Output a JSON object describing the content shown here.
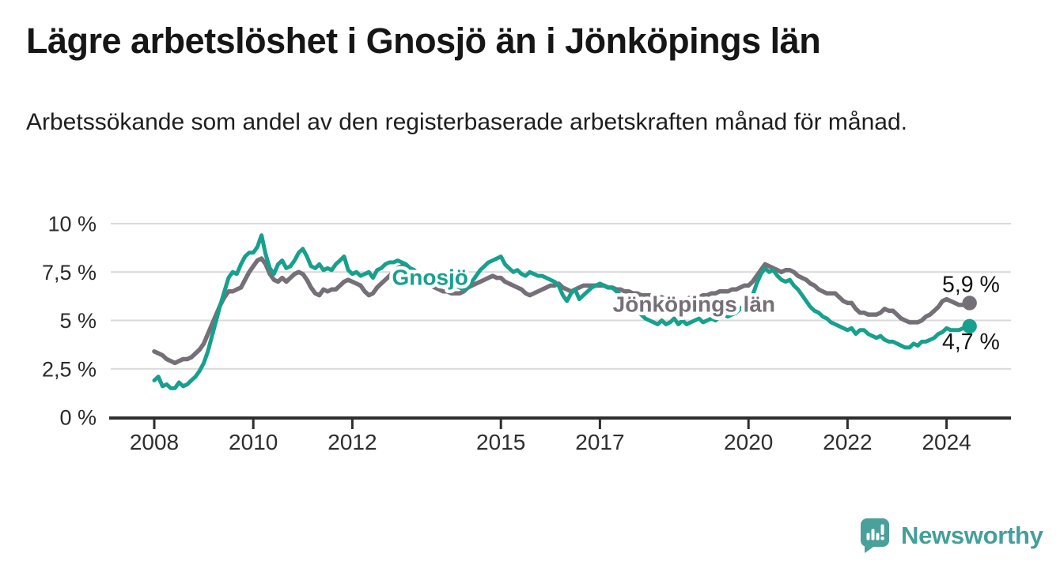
{
  "header": {
    "title": "Lägre arbetslöshet i Gnosjö än i Jönköpings län",
    "subtitle": "Arbetssökande som andel av den registerbaserade arbetskraften månad för månad."
  },
  "footer": {
    "brand": "Newsworthy"
  },
  "chart_data": {
    "type": "line",
    "title": "Lägre arbetslöshet i Gnosjö än i Jönköpings län",
    "subtitle": "Arbetssökande som andel av den registerbaserade arbetskraften månad för månad.",
    "unit": "%",
    "frequency": "monthly",
    "x_start": "2008-01",
    "x_end": "2024-06",
    "ylim": [
      0,
      10
    ],
    "grid": "horizontal",
    "yticks": [
      {
        "value": 10,
        "label": "10 %"
      },
      {
        "value": 7.5,
        "label": "7,5 %"
      },
      {
        "value": 5,
        "label": "5 %"
      },
      {
        "value": 2.5,
        "label": "2,5 %"
      },
      {
        "value": 0,
        "label": "0 %"
      }
    ],
    "xticks": [
      {
        "year": 2008,
        "label": "2008"
      },
      {
        "year": 2010,
        "label": "2010"
      },
      {
        "year": 2012,
        "label": "2012"
      },
      {
        "year": 2015,
        "label": "2015"
      },
      {
        "year": 2017,
        "label": "2017"
      },
      {
        "year": 2020,
        "label": "2020"
      },
      {
        "year": 2022,
        "label": "2022"
      },
      {
        "year": 2024,
        "label": "2024"
      }
    ],
    "series": [
      {
        "name": "Jönköpings län",
        "slug": "jonkopings-lan",
        "color": "#757077",
        "end_label": "5,9 %",
        "end_value": 5.9,
        "label_anchor": {
          "year": 2018.9,
          "value": 5.85
        },
        "values": [
          3.4,
          3.3,
          3.2,
          3.0,
          2.9,
          2.8,
          2.9,
          3.0,
          3.0,
          3.1,
          3.3,
          3.5,
          3.8,
          4.3,
          4.8,
          5.3,
          5.8,
          6.2,
          6.5,
          6.5,
          6.6,
          6.7,
          7.1,
          7.5,
          7.8,
          8.1,
          8.2,
          7.9,
          7.4,
          7.1,
          7.0,
          7.2,
          7.0,
          7.2,
          7.4,
          7.5,
          7.4,
          7.1,
          6.7,
          6.4,
          6.3,
          6.6,
          6.5,
          6.6,
          6.6,
          6.8,
          7.0,
          7.1,
          7.0,
          6.9,
          6.8,
          6.5,
          6.3,
          6.4,
          6.7,
          6.9,
          7.1,
          7.3,
          7.5,
          7.7,
          7.8,
          7.6,
          7.4,
          7.2,
          7.1,
          7.0,
          6.9,
          6.8,
          6.7,
          6.6,
          6.5,
          6.5,
          6.4,
          6.4,
          6.4,
          6.5,
          6.7,
          6.8,
          6.9,
          7.0,
          7.1,
          7.2,
          7.3,
          7.2,
          7.2,
          7.0,
          6.9,
          6.8,
          6.7,
          6.6,
          6.4,
          6.3,
          6.4,
          6.5,
          6.6,
          6.7,
          6.8,
          6.8,
          6.9,
          6.7,
          6.6,
          6.5,
          6.6,
          6.7,
          6.8,
          6.8,
          6.8,
          6.8,
          6.8,
          6.8,
          6.7,
          6.7,
          6.6,
          6.6,
          6.5,
          6.5,
          6.4,
          6.4,
          6.3,
          6.3,
          6.3,
          6.2,
          6.2,
          6.2,
          6.1,
          6.1,
          6.2,
          6.1,
          6.1,
          6.1,
          6.2,
          6.2,
          6.2,
          6.3,
          6.3,
          6.4,
          6.4,
          6.5,
          6.5,
          6.5,
          6.6,
          6.6,
          6.7,
          6.8,
          6.8,
          7.0,
          7.3,
          7.6,
          7.9,
          7.8,
          7.7,
          7.6,
          7.5,
          7.6,
          7.6,
          7.5,
          7.3,
          7.2,
          7.1,
          6.9,
          6.8,
          6.6,
          6.5,
          6.4,
          6.4,
          6.4,
          6.2,
          6.0,
          5.9,
          5.9,
          5.6,
          5.4,
          5.4,
          5.3,
          5.3,
          5.3,
          5.4,
          5.6,
          5.5,
          5.5,
          5.3,
          5.1,
          5.0,
          4.9,
          4.9,
          4.9,
          5.0,
          5.2,
          5.3,
          5.5,
          5.7,
          6.0,
          6.1,
          6.0,
          5.9,
          5.8,
          5.8,
          5.9
        ]
      },
      {
        "name": "Gnosjö",
        "slug": "gnosjo",
        "color": "#17a08d",
        "end_label": "4,7 %",
        "end_value": 4.7,
        "label_anchor": {
          "year": 2013.57,
          "value": 7.25
        },
        "values": [
          1.9,
          2.1,
          1.6,
          1.7,
          1.5,
          1.5,
          1.8,
          1.6,
          1.7,
          1.9,
          2.1,
          2.4,
          2.8,
          3.4,
          4.2,
          5.0,
          5.8,
          6.5,
          7.2,
          7.5,
          7.4,
          7.9,
          8.3,
          8.5,
          8.5,
          8.8,
          9.4,
          8.4,
          7.7,
          7.4,
          7.9,
          8.1,
          7.7,
          7.8,
          8.1,
          8.5,
          8.7,
          8.3,
          7.8,
          7.7,
          7.9,
          7.6,
          7.7,
          7.6,
          7.9,
          8.1,
          8.3,
          7.6,
          7.4,
          7.5,
          7.3,
          7.4,
          7.5,
          7.2,
          7.6,
          7.7,
          7.9,
          8.0,
          8.0,
          8.1,
          8.0,
          7.9,
          7.7,
          7.6,
          7.4,
          7.3,
          7.2,
          7.1,
          7.0,
          7.0,
          6.9,
          6.9,
          6.9,
          6.8,
          6.7,
          6.6,
          6.7,
          7.0,
          7.3,
          7.6,
          7.8,
          8.0,
          8.1,
          8.2,
          8.3,
          7.9,
          7.7,
          7.5,
          7.6,
          7.4,
          7.3,
          7.5,
          7.4,
          7.3,
          7.3,
          7.2,
          7.1,
          7.0,
          6.8,
          6.3,
          6.0,
          6.4,
          6.6,
          6.1,
          6.3,
          6.5,
          6.7,
          6.8,
          6.9,
          6.8,
          6.7,
          6.7,
          6.5,
          6.3,
          6.1,
          5.9,
          5.7,
          5.5,
          5.3,
          5.1,
          5.0,
          4.9,
          4.8,
          5.0,
          4.8,
          4.9,
          5.1,
          4.8,
          5.0,
          4.8,
          4.9,
          5.0,
          5.1,
          4.9,
          5.0,
          5.1,
          5.0,
          5.2,
          5.3,
          5.2,
          5.3,
          5.4,
          5.6,
          5.8,
          6.0,
          6.3,
          6.9,
          7.4,
          7.7,
          7.5,
          7.6,
          7.3,
          7.1,
          7.0,
          7.1,
          6.8,
          6.6,
          6.3,
          6.0,
          5.7,
          5.5,
          5.4,
          5.2,
          5.1,
          4.9,
          4.8,
          4.7,
          4.6,
          4.5,
          4.6,
          4.3,
          4.5,
          4.5,
          4.3,
          4.2,
          4.1,
          4.2,
          4.0,
          3.9,
          3.9,
          3.8,
          3.7,
          3.6,
          3.6,
          3.8,
          3.7,
          3.9,
          3.9,
          4.0,
          4.1,
          4.3,
          4.4,
          4.6,
          4.5,
          4.5,
          4.5,
          4.6,
          4.7
        ]
      }
    ]
  }
}
